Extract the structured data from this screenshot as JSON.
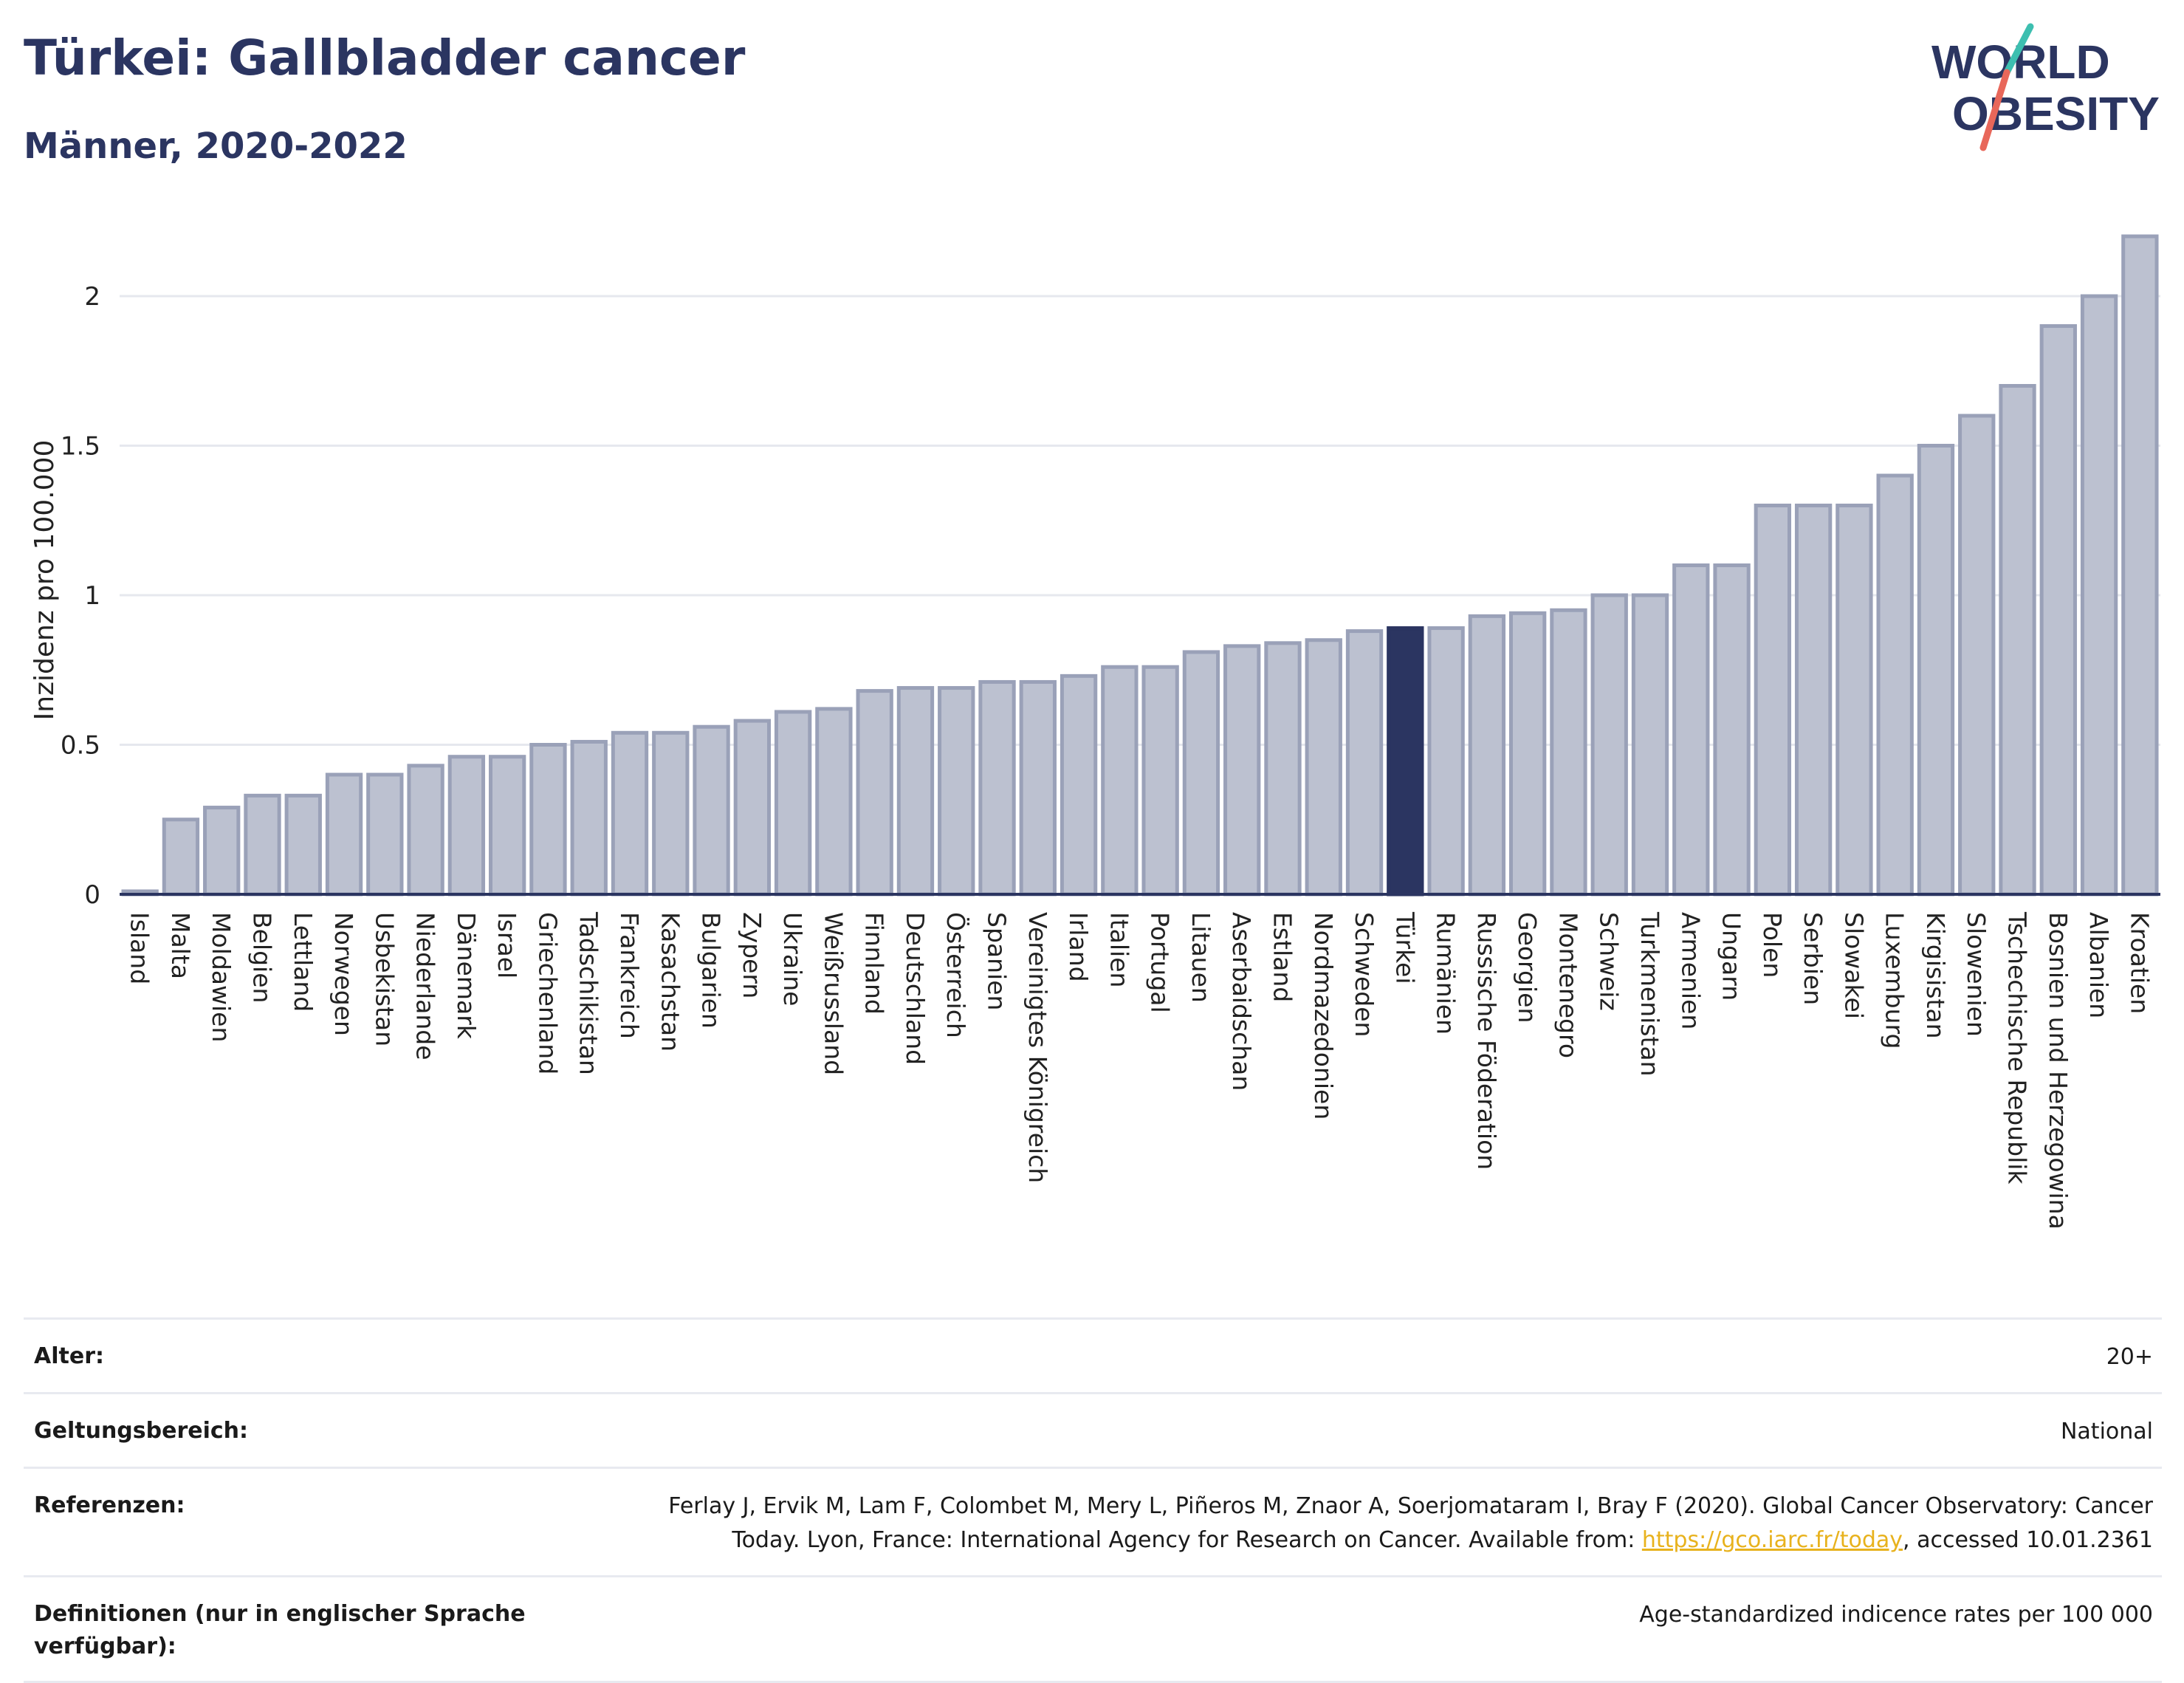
{
  "header": {
    "title": "Türkei: Gallbladder cancer",
    "subtitle": "Männer, 2020-2022"
  },
  "logo": {
    "line1": "WORLD",
    "line2": "OBESITY"
  },
  "colors": {
    "bar_default": "#bcc1d0",
    "bar_default_stroke": "#9aa1b8",
    "bar_highlight": "#2b3561",
    "title": "#2b3561",
    "link": "#e8b21d",
    "logo_slash_teal": "#3dbfb0",
    "logo_slash_red": "#e8675a"
  },
  "chart_data": {
    "type": "bar",
    "title": "Türkei: Gallbladder cancer",
    "subtitle": "Männer, 2020-2022",
    "xlabel": "",
    "ylabel": "Inzidenz pro 100.000",
    "ylim": [
      0,
      2.2
    ],
    "yticks": [
      0,
      0.5,
      1,
      1.5,
      2
    ],
    "ytick_labels": [
      "0",
      "0.5",
      "1",
      "1.5",
      "2"
    ],
    "grid": true,
    "highlight": "Türkei",
    "categories": [
      "Island",
      "Malta",
      "Moldawien",
      "Belgien",
      "Lettland",
      "Norwegen",
      "Usbekistan",
      "Niederlande",
      "Dänemark",
      "Israel",
      "Griechenland",
      "Tadschikistan",
      "Frankreich",
      "Kasachstan",
      "Bulgarien",
      "Zypern",
      "Ukraine",
      "Weißrussland",
      "Finnland",
      "Deutschland",
      "Österreich",
      "Spanien",
      "Vereinigtes Königreich",
      "Irland",
      "Italien",
      "Portugal",
      "Litauen",
      "Aserbaidschan",
      "Estland",
      "Nordmazedonien",
      "Schweden",
      "Türkei",
      "Rumänien",
      "Russische Föderation",
      "Georgien",
      "Montenegro",
      "Schweiz",
      "Turkmenistan",
      "Armenien",
      "Ungarn",
      "Polen",
      "Serbien",
      "Slowakei",
      "Luxemburg",
      "Kirgisistan",
      "Slowenien",
      "Tschechische Republik",
      "Bosnien und Herzegowina",
      "Albanien",
      "Kroatien"
    ],
    "values": [
      0.01,
      0.25,
      0.29,
      0.33,
      0.33,
      0.4,
      0.4,
      0.43,
      0.46,
      0.46,
      0.5,
      0.51,
      0.54,
      0.54,
      0.56,
      0.58,
      0.61,
      0.62,
      0.68,
      0.69,
      0.69,
      0.71,
      0.71,
      0.73,
      0.76,
      0.76,
      0.81,
      0.83,
      0.84,
      0.85,
      0.88,
      0.89,
      0.89,
      0.93,
      0.94,
      0.95,
      1.0,
      1.0,
      1.1,
      1.1,
      1.3,
      1.3,
      1.3,
      1.4,
      1.5,
      1.6,
      1.7,
      1.9,
      2.0,
      2.2
    ]
  },
  "info": {
    "rows": [
      {
        "label": "Alter:",
        "value": "20+"
      },
      {
        "label": "Geltungsbereich:",
        "value": "National"
      },
      {
        "label": "Referenzen:",
        "value_line1": "Ferlay J, Ervik M, Lam F, Colombet M, Mery L, Piñeros M, Znaor A, Soerjomataram I, Bray F (2020). Global Cancer Observatory: Cancer",
        "value_line2_pre": "Today. Lyon, France: International Agency for Research on Cancer. Available from: ",
        "link_text": "https://gco.iarc.fr/today",
        "value_line2_post": ", accessed 10.01.2361"
      },
      {
        "label": "Definitionen (nur in englischer Sprache verfügbar):",
        "value": "Age-standardized indicence rates per 100 000"
      }
    ]
  }
}
